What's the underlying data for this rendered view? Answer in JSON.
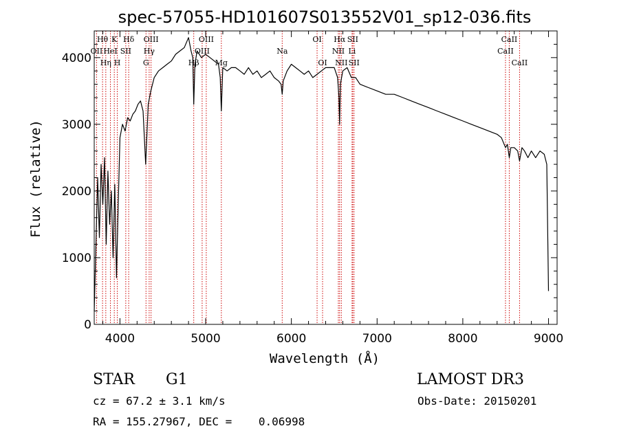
{
  "chart_data": {
    "type": "line",
    "title": "spec-57055-HD101607S013552V01_sp12-036.fits",
    "xlabel": "Wavelength (Å)",
    "ylabel": "Flux (relative)",
    "xlim": [
      3700,
      9100
    ],
    "ylim": [
      0,
      4400
    ],
    "xticks": [
      4000,
      5000,
      6000,
      7000,
      8000,
      9000
    ],
    "yticks": [
      0,
      1000,
      2000,
      3000,
      4000
    ],
    "x_tick_labels": [
      "4000",
      "5000",
      "6000",
      "7000",
      "8000",
      "9000"
    ],
    "y_tick_labels": [
      "0",
      "1000",
      "2000",
      "3000",
      "4000"
    ],
    "series": [
      {
        "name": "spectrum",
        "x": [
          3700,
          3720,
          3740,
          3760,
          3780,
          3800,
          3820,
          3840,
          3860,
          3880,
          3900,
          3920,
          3940,
          3960,
          3980,
          4000,
          4030,
          4060,
          4090,
          4120,
          4150,
          4180,
          4210,
          4240,
          4270,
          4300,
          4330,
          4360,
          4400,
          4450,
          4500,
          4550,
          4600,
          4650,
          4700,
          4750,
          4800,
          4830,
          4850,
          4861,
          4875,
          4900,
          4950,
          5000,
          5050,
          5100,
          5150,
          5170,
          5183,
          5200,
          5250,
          5300,
          5350,
          5400,
          5450,
          5500,
          5550,
          5600,
          5650,
          5700,
          5750,
          5800,
          5850,
          5880,
          5893,
          5905,
          5950,
          6000,
          6050,
          6100,
          6150,
          6200,
          6250,
          6300,
          6350,
          6400,
          6450,
          6500,
          6540,
          6555,
          6563,
          6572,
          6600,
          6650,
          6700,
          6750,
          6800,
          6900,
          7000,
          7100,
          7200,
          7300,
          7400,
          7500,
          7600,
          7700,
          7800,
          7900,
          8000,
          8100,
          8200,
          8300,
          8400,
          8450,
          8498,
          8520,
          8542,
          8560,
          8600,
          8640,
          8662,
          8690,
          8720,
          8760,
          8800,
          8850,
          8900,
          8950,
          8980,
          9000
        ],
        "y": [
          200,
          1200,
          2200,
          1300,
          2400,
          1800,
          2500,
          1200,
          2300,
          1500,
          2000,
          1000,
          2100,
          700,
          1800,
          2800,
          3000,
          2900,
          3100,
          3050,
          3150,
          3200,
          3300,
          3350,
          3200,
          2400,
          3300,
          3500,
          3700,
          3800,
          3850,
          3900,
          3950,
          4050,
          4100,
          4150,
          4300,
          4100,
          4000,
          3300,
          3900,
          4100,
          4000,
          4050,
          4000,
          3950,
          3900,
          3700,
          3200,
          3850,
          3800,
          3850,
          3850,
          3800,
          3750,
          3850,
          3750,
          3800,
          3700,
          3750,
          3800,
          3700,
          3650,
          3600,
          3450,
          3650,
          3800,
          3900,
          3850,
          3800,
          3750,
          3800,
          3700,
          3750,
          3800,
          3850,
          3850,
          3850,
          3700,
          3400,
          3000,
          3600,
          3800,
          3850,
          3700,
          3700,
          3600,
          3550,
          3500,
          3450,
          3450,
          3400,
          3350,
          3300,
          3250,
          3200,
          3150,
          3100,
          3050,
          3000,
          2950,
          2900,
          2850,
          2800,
          2650,
          2700,
          2500,
          2650,
          2650,
          2600,
          2450,
          2650,
          2600,
          2500,
          2600,
          2500,
          2600,
          2550,
          2400,
          500
        ]
      }
    ],
    "lines": [
      {
        "wave": 3727,
        "label": "OII",
        "row": 1
      },
      {
        "wave": 3797,
        "label": "Hθ",
        "row": 0
      },
      {
        "wave": 3835,
        "label": "Hη",
        "row": 2
      },
      {
        "wave": 3889,
        "label": "HeI",
        "row": 1
      },
      {
        "wave": 3934,
        "label": "K",
        "row": 0
      },
      {
        "wave": 3969,
        "label": "H",
        "row": 2
      },
      {
        "wave": 4068,
        "label": "SII",
        "row": 1
      },
      {
        "wave": 4102,
        "label": "Hδ",
        "row": 0
      },
      {
        "wave": 4304,
        "label": "G",
        "row": 2
      },
      {
        "wave": 4341,
        "label": "Hγ",
        "row": 1
      },
      {
        "wave": 4363,
        "label": "OIII",
        "row": 0
      },
      {
        "wave": 4861,
        "label": "Hβ",
        "row": 2
      },
      {
        "wave": 4959,
        "label": "OIII",
        "row": 1
      },
      {
        "wave": 5007,
        "label": "OIII",
        "row": 0
      },
      {
        "wave": 5183,
        "label": "Mg",
        "row": 2
      },
      {
        "wave": 5893,
        "label": "Na",
        "row": 1
      },
      {
        "wave": 6300,
        "label": "OI",
        "row": 0
      },
      {
        "wave": 6364,
        "label": "OI",
        "row": 2
      },
      {
        "wave": 6548,
        "label": "NII",
        "row": 1
      },
      {
        "wave": 6563,
        "label": "Hα",
        "row": 0
      },
      {
        "wave": 6583,
        "label": "NII",
        "row": 2
      },
      {
        "wave": 6708,
        "label": "Li",
        "row": 1
      },
      {
        "wave": 6716,
        "label": "SII",
        "row": 0
      },
      {
        "wave": 6731,
        "label": "SII",
        "row": 2
      },
      {
        "wave": 8498,
        "label": "CaII",
        "row": 1
      },
      {
        "wave": 8542,
        "label": "CaII",
        "row": 0
      },
      {
        "wave": 8662,
        "label": "CaII",
        "row": 2
      }
    ]
  },
  "info": {
    "object_type": "STAR",
    "subclass": "G1",
    "survey": "LAMOST DR3",
    "redshift_line": "cz = 67.2 ± 3.1 km/s",
    "obs_date_line": "Obs-Date: 20150201",
    "coords_line": "RA = 155.27967, DEC =    0.06998"
  },
  "colors": {
    "spectrum": "#000000",
    "line_markers": "#cc0000",
    "axes": "#000000",
    "background": "#ffffff"
  }
}
